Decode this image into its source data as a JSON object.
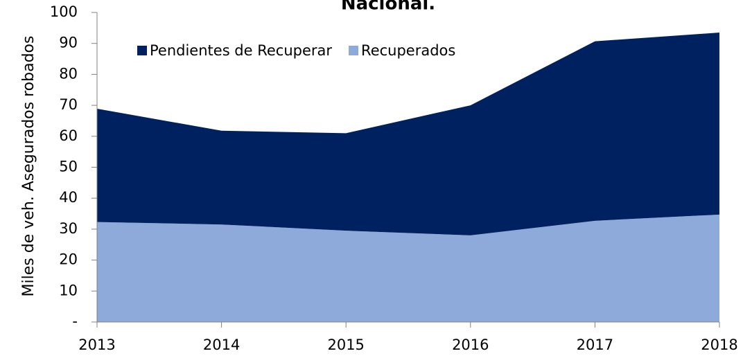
{
  "chart_data": {
    "type": "stacked_area",
    "title": "Nacional.",
    "y_label": "Miles de veh. Asegurados robados",
    "x": [
      2013,
      2014,
      2015,
      2016,
      2017,
      2018
    ],
    "xlim": [
      2013,
      2018
    ],
    "xticks": [
      2013,
      2014,
      2015,
      2016,
      2017,
      2018
    ],
    "series": [
      {
        "name": "Pendientes de Recuperar",
        "color": "#00215f",
        "values": [
          36.6,
          30.3,
          31.5,
          42.0,
          58.0,
          58.8
        ]
      },
      {
        "name": "Recuperados",
        "color": "#8eaadb",
        "values": [
          32.3,
          31.5,
          29.5,
          28.0,
          32.7,
          34.7
        ]
      }
    ],
    "ylim": [
      0,
      100
    ],
    "yticks": [
      {
        "value": 0,
        "label": "-"
      },
      10,
      20,
      30,
      40,
      50,
      60,
      70,
      80,
      90,
      100
    ],
    "legend": "top-left"
  }
}
